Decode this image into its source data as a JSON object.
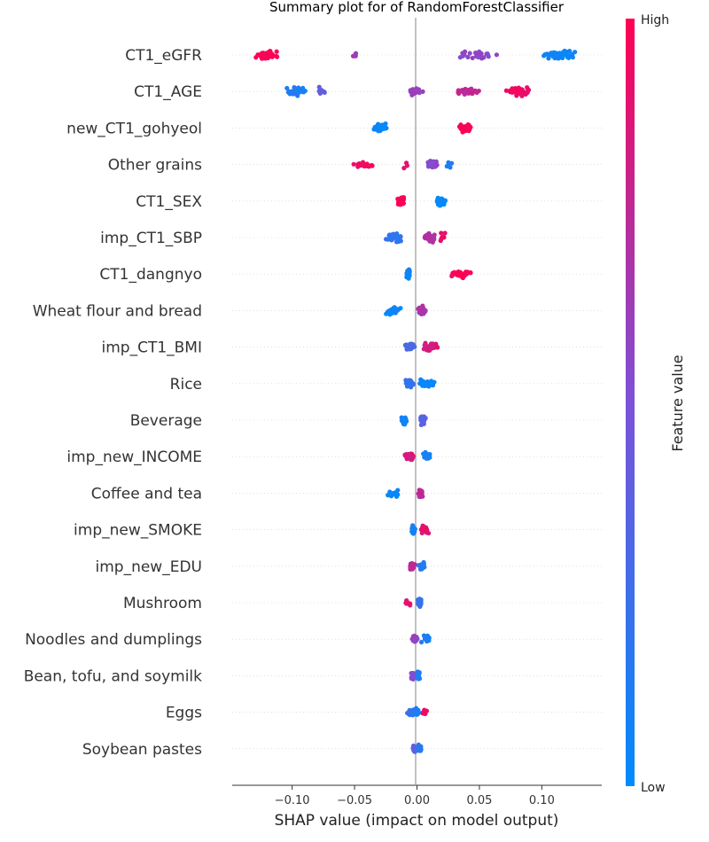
{
  "chart_data": {
    "type": "scatter",
    "subtype": "shap-beeswarm",
    "title": "Summary plot for of RandomForestClassifier",
    "xlabel": "SHAP value (impact on model output)",
    "ylabel": "",
    "xlim": [
      -0.148,
      0.148
    ],
    "xticks": [
      -0.1,
      -0.05,
      0.0,
      0.05,
      0.1
    ],
    "xtick_labels": [
      "−0.10",
      "−0.05",
      "0.00",
      "0.05",
      "0.10"
    ],
    "colorbar": {
      "label": "Feature value",
      "high": "High",
      "low": "Low",
      "low_color": "#008bfb",
      "mid_color": "#7c52d8",
      "high_color": "#ff0052"
    },
    "zero_line_color": "#999999",
    "features": [
      {
        "name": "CT1_eGFR",
        "clusters": [
          {
            "x": -0.12,
            "spread": 0.012,
            "n": 40,
            "c": 1.0
          },
          {
            "x": -0.05,
            "spread": 0.004,
            "n": 4,
            "c": 0.6
          },
          {
            "x": 0.05,
            "spread": 0.02,
            "n": 25,
            "c": 0.55
          },
          {
            "x": 0.115,
            "spread": 0.015,
            "n": 55,
            "c": 0.05
          }
        ]
      },
      {
        "name": "CT1_AGE",
        "clusters": [
          {
            "x": -0.097,
            "spread": 0.012,
            "n": 40,
            "c": 0.1
          },
          {
            "x": -0.075,
            "spread": 0.006,
            "n": 8,
            "c": 0.4
          },
          {
            "x": 0.0,
            "spread": 0.01,
            "n": 12,
            "c": 0.6
          },
          {
            "x": 0.04,
            "spread": 0.015,
            "n": 25,
            "c": 0.75
          },
          {
            "x": 0.082,
            "spread": 0.012,
            "n": 45,
            "c": 0.95
          }
        ]
      },
      {
        "name": "new_CT1_gohyeol",
        "clusters": [
          {
            "x": -0.03,
            "spread": 0.007,
            "n": 60,
            "c": 0.02
          },
          {
            "x": 0.038,
            "spread": 0.007,
            "n": 60,
            "c": 0.98
          }
        ]
      },
      {
        "name": "Other grains",
        "clusters": [
          {
            "x": -0.045,
            "spread": 0.012,
            "n": 20,
            "c": 0.95
          },
          {
            "x": -0.01,
            "spread": 0.005,
            "n": 3,
            "c": 0.9
          },
          {
            "x": 0.012,
            "spread": 0.006,
            "n": 40,
            "c": 0.55
          },
          {
            "x": 0.026,
            "spread": 0.005,
            "n": 6,
            "c": 0.15
          }
        ]
      },
      {
        "name": "CT1_SEX",
        "clusters": [
          {
            "x": -0.013,
            "spread": 0.004,
            "n": 50,
            "c": 1.0
          },
          {
            "x": 0.019,
            "spread": 0.005,
            "n": 50,
            "c": 0.02
          }
        ]
      },
      {
        "name": "imp_CT1_SBP",
        "clusters": [
          {
            "x": -0.018,
            "spread": 0.008,
            "n": 30,
            "c": 0.2
          },
          {
            "x": 0.01,
            "spread": 0.006,
            "n": 45,
            "c": 0.7
          },
          {
            "x": 0.02,
            "spread": 0.004,
            "n": 8,
            "c": 0.9
          }
        ]
      },
      {
        "name": "CT1_dangnyo",
        "clusters": [
          {
            "x": -0.007,
            "spread": 0.002,
            "n": 60,
            "c": 0.05
          },
          {
            "x": 0.035,
            "spread": 0.012,
            "n": 30,
            "c": 0.98
          }
        ]
      },
      {
        "name": "Wheat flour and bread",
        "clusters": [
          {
            "x": -0.018,
            "spread": 0.008,
            "n": 20,
            "c": 0.05
          },
          {
            "x": 0.004,
            "spread": 0.004,
            "n": 40,
            "c": 0.7
          }
        ]
      },
      {
        "name": "imp_CT1_BMI",
        "clusters": [
          {
            "x": -0.006,
            "spread": 0.005,
            "n": 45,
            "c": 0.3
          },
          {
            "x": 0.01,
            "spread": 0.008,
            "n": 30,
            "c": 0.85
          }
        ]
      },
      {
        "name": "Rice",
        "clusters": [
          {
            "x": -0.006,
            "spread": 0.004,
            "n": 40,
            "c": 0.2
          },
          {
            "x": 0.008,
            "spread": 0.008,
            "n": 30,
            "c": 0.05
          }
        ]
      },
      {
        "name": "Beverage",
        "clusters": [
          {
            "x": -0.01,
            "spread": 0.004,
            "n": 15,
            "c": 0.1
          },
          {
            "x": 0.005,
            "spread": 0.003,
            "n": 40,
            "c": 0.35
          }
        ]
      },
      {
        "name": "imp_new_INCOME",
        "clusters": [
          {
            "x": -0.006,
            "spread": 0.006,
            "n": 40,
            "c": 0.85
          },
          {
            "x": 0.008,
            "spread": 0.004,
            "n": 20,
            "c": 0.1
          }
        ]
      },
      {
        "name": "Coffee and tea",
        "clusters": [
          {
            "x": -0.02,
            "spread": 0.01,
            "n": 15,
            "c": 0.05
          },
          {
            "x": 0.003,
            "spread": 0.002,
            "n": 40,
            "c": 0.75
          }
        ]
      },
      {
        "name": "imp_new_SMOKE",
        "clusters": [
          {
            "x": -0.003,
            "spread": 0.002,
            "n": 25,
            "c": 0.1
          },
          {
            "x": 0.006,
            "spread": 0.004,
            "n": 25,
            "c": 0.9
          }
        ]
      },
      {
        "name": "imp_new_EDU",
        "clusters": [
          {
            "x": -0.004,
            "spread": 0.003,
            "n": 35,
            "c": 0.75
          },
          {
            "x": 0.004,
            "spread": 0.003,
            "n": 25,
            "c": 0.15
          }
        ]
      },
      {
        "name": "Mushroom",
        "clusters": [
          {
            "x": -0.007,
            "spread": 0.003,
            "n": 8,
            "c": 0.9
          },
          {
            "x": 0.002,
            "spread": 0.002,
            "n": 45,
            "c": 0.2
          }
        ]
      },
      {
        "name": "Noodles and dumplings",
        "clusters": [
          {
            "x": -0.002,
            "spread": 0.003,
            "n": 35,
            "c": 0.6
          },
          {
            "x": 0.007,
            "spread": 0.004,
            "n": 15,
            "c": 0.1
          }
        ]
      },
      {
        "name": "Bean, tofu, and soymilk",
        "clusters": [
          {
            "x": -0.003,
            "spread": 0.002,
            "n": 25,
            "c": 0.55
          },
          {
            "x": 0.001,
            "spread": 0.002,
            "n": 25,
            "c": 0.1
          }
        ]
      },
      {
        "name": "Eggs",
        "clusters": [
          {
            "x": -0.005,
            "spread": 0.004,
            "n": 20,
            "c": 0.2
          },
          {
            "x": 0.006,
            "spread": 0.003,
            "n": 10,
            "c": 0.9
          },
          {
            "x": 0.0,
            "spread": 0.002,
            "n": 20,
            "c": 0.1
          }
        ]
      },
      {
        "name": "Soybean pastes",
        "clusters": [
          {
            "x": -0.002,
            "spread": 0.002,
            "n": 30,
            "c": 0.4
          },
          {
            "x": 0.002,
            "spread": 0.002,
            "n": 20,
            "c": 0.15
          }
        ]
      }
    ]
  }
}
